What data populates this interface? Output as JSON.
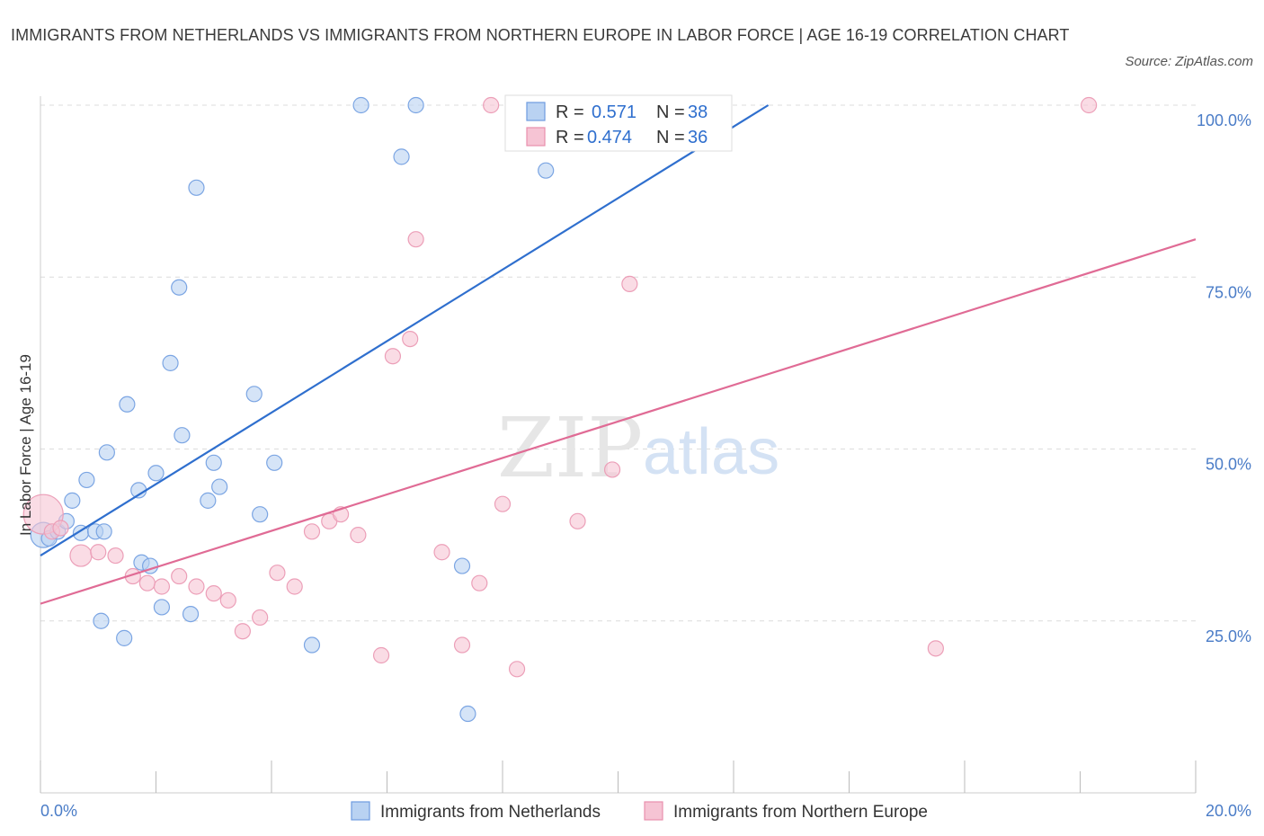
{
  "title": "IMMIGRANTS FROM NETHERLANDS VS IMMIGRANTS FROM NORTHERN EUROPE IN LABOR FORCE | AGE 16-19 CORRELATION CHART",
  "source": "Source: ZipAtlas.com",
  "watermark": {
    "zip": "ZIP",
    "atlas": "atlas"
  },
  "colors": {
    "blue": "#2f6fce",
    "blue_fill": "#b9d2f2",
    "pink": "#e06b95",
    "pink_fill": "#f6c4d4",
    "tick": "#4a7cc7"
  },
  "chart_data": {
    "type": "scatter",
    "xlabel": "",
    "ylabel": "In Labor Force | Age 16-19",
    "xlim": [
      0,
      20
    ],
    "ylim": [
      0,
      100
    ],
    "x_tick_labels": [
      {
        "value": 0,
        "label": "0.0%"
      },
      {
        "value": 20,
        "label": "20.0%"
      }
    ],
    "y_tick_labels": [
      {
        "value": 25,
        "label": "25.0%"
      },
      {
        "value": 50,
        "label": "50.0%"
      },
      {
        "value": 75,
        "label": "75.0%"
      },
      {
        "value": 100,
        "label": "100.0%"
      }
    ],
    "grid": "horizontal dashed",
    "legend": {
      "placement": "top-center",
      "entries": [
        {
          "r_label": "R =",
          "r_value": "0.571",
          "n_label": "N =",
          "n_value": "38"
        },
        {
          "r_label": "R =",
          "r_value": "0.474",
          "n_label": "N =",
          "n_value": "36"
        }
      ]
    },
    "series": [
      {
        "name": "Immigrants from Netherlands",
        "r": 0.571,
        "n": 38,
        "trend": {
          "x": [
            0,
            12.6
          ],
          "y": [
            34.5,
            100
          ]
        },
        "points": [
          {
            "x": 0.05,
            "y": 37.5,
            "size": 14
          },
          {
            "x": 0.15,
            "y": 37.0
          },
          {
            "x": 0.3,
            "y": 38.0
          },
          {
            "x": 0.45,
            "y": 39.5
          },
          {
            "x": 0.55,
            "y": 42.5
          },
          {
            "x": 0.7,
            "y": 37.8
          },
          {
            "x": 0.8,
            "y": 45.5
          },
          {
            "x": 0.95,
            "y": 38.0
          },
          {
            "x": 1.1,
            "y": 38.0
          },
          {
            "x": 1.15,
            "y": 49.5
          },
          {
            "x": 1.05,
            "y": 25.0
          },
          {
            "x": 1.45,
            "y": 22.5
          },
          {
            "x": 1.5,
            "y": 56.5
          },
          {
            "x": 1.7,
            "y": 44.0
          },
          {
            "x": 1.75,
            "y": 33.5
          },
          {
            "x": 1.9,
            "y": 33.0
          },
          {
            "x": 2.0,
            "y": 46.5
          },
          {
            "x": 2.1,
            "y": 27.0
          },
          {
            "x": 2.25,
            "y": 62.5
          },
          {
            "x": 2.4,
            "y": 73.5
          },
          {
            "x": 2.45,
            "y": 52.0
          },
          {
            "x": 2.6,
            "y": 26.0
          },
          {
            "x": 2.7,
            "y": 88.0
          },
          {
            "x": 2.9,
            "y": 42.5
          },
          {
            "x": 3.0,
            "y": 48.0
          },
          {
            "x": 3.1,
            "y": 44.5
          },
          {
            "x": 3.7,
            "y": 58.0
          },
          {
            "x": 3.8,
            "y": 40.5
          },
          {
            "x": 4.05,
            "y": 48.0
          },
          {
            "x": 4.7,
            "y": 21.5
          },
          {
            "x": 5.55,
            "y": 100.0
          },
          {
            "x": 6.25,
            "y": 92.5
          },
          {
            "x": 6.5,
            "y": 100.0
          },
          {
            "x": 7.3,
            "y": 33.0
          },
          {
            "x": 7.4,
            "y": 11.5
          },
          {
            "x": 8.8,
            "y": 100.0
          },
          {
            "x": 8.75,
            "y": 90.5
          },
          {
            "x": 10.8,
            "y": 100.0
          }
        ]
      },
      {
        "name": "Immigrants from Northern Europe",
        "r": 0.474,
        "n": 36,
        "trend": {
          "x": [
            0,
            20
          ],
          "y": [
            27.5,
            80.5
          ]
        },
        "points": [
          {
            "x": 0.05,
            "y": 40.5,
            "size": 22
          },
          {
            "x": 0.2,
            "y": 38.0
          },
          {
            "x": 0.35,
            "y": 38.5
          },
          {
            "x": 0.7,
            "y": 34.5,
            "size": 12
          },
          {
            "x": 1.0,
            "y": 35.0
          },
          {
            "x": 1.3,
            "y": 34.5
          },
          {
            "x": 1.6,
            "y": 31.5
          },
          {
            "x": 1.85,
            "y": 30.5
          },
          {
            "x": 2.1,
            "y": 30.0
          },
          {
            "x": 2.4,
            "y": 31.5
          },
          {
            "x": 2.7,
            "y": 30.0
          },
          {
            "x": 3.0,
            "y": 29.0
          },
          {
            "x": 3.25,
            "y": 28.0
          },
          {
            "x": 3.5,
            "y": 23.5
          },
          {
            "x": 3.8,
            "y": 25.5
          },
          {
            "x": 4.1,
            "y": 32.0
          },
          {
            "x": 4.4,
            "y": 30.0
          },
          {
            "x": 4.7,
            "y": 38.0
          },
          {
            "x": 5.0,
            "y": 39.5
          },
          {
            "x": 5.2,
            "y": 40.5
          },
          {
            "x": 5.5,
            "y": 37.5
          },
          {
            "x": 5.9,
            "y": 20.0
          },
          {
            "x": 6.1,
            "y": 63.5
          },
          {
            "x": 6.4,
            "y": 66.0
          },
          {
            "x": 6.5,
            "y": 80.5
          },
          {
            "x": 6.95,
            "y": 35.0
          },
          {
            "x": 7.3,
            "y": 21.5
          },
          {
            "x": 7.6,
            "y": 30.5
          },
          {
            "x": 7.8,
            "y": 100.0
          },
          {
            "x": 8.0,
            "y": 42.0
          },
          {
            "x": 8.25,
            "y": 18.0
          },
          {
            "x": 9.3,
            "y": 39.5
          },
          {
            "x": 9.9,
            "y": 47.0
          },
          {
            "x": 10.2,
            "y": 74.0
          },
          {
            "x": 15.5,
            "y": 21.0
          },
          {
            "x": 18.15,
            "y": 100.0
          }
        ]
      }
    ]
  }
}
